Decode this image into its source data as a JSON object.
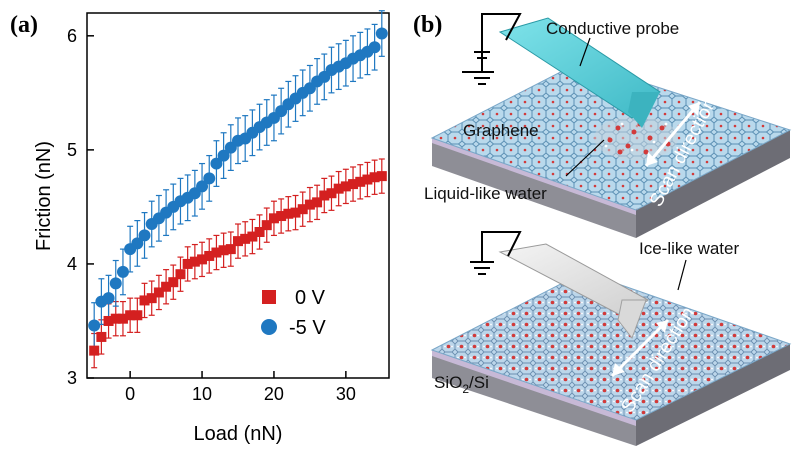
{
  "panels": {
    "a_label": "(a)",
    "b_label": "(b)"
  },
  "chart_data": {
    "type": "scatter",
    "title": "",
    "xlabel": "Load (nN)",
    "ylabel": "Friction (nN)",
    "xlim": [
      -6,
      36
    ],
    "ylim": [
      3,
      6.2
    ],
    "xticks": [
      0,
      10,
      20,
      30
    ],
    "yticks": [
      3,
      4,
      5,
      6
    ],
    "grid": false,
    "legend_position": "bottom-right",
    "colors": {
      "0 V": "#d42020",
      "-5 V": "#1f78c1"
    },
    "series": [
      {
        "name": "0 V",
        "marker": "square",
        "x": [
          -5,
          -4,
          -3,
          -2,
          -1,
          0,
          1,
          2,
          3,
          4,
          5,
          6,
          7,
          8,
          9,
          10,
          11,
          12,
          13,
          14,
          15,
          16,
          17,
          18,
          19,
          20,
          21,
          22,
          23,
          24,
          25,
          26,
          27,
          28,
          29,
          30,
          31,
          32,
          33,
          34,
          35
        ],
        "y": [
          3.24,
          3.36,
          3.5,
          3.52,
          3.52,
          3.55,
          3.55,
          3.68,
          3.7,
          3.75,
          3.8,
          3.84,
          3.91,
          4.0,
          4.02,
          4.04,
          4.07,
          4.1,
          4.12,
          4.13,
          4.2,
          4.22,
          4.24,
          4.28,
          4.34,
          4.4,
          4.42,
          4.44,
          4.45,
          4.48,
          4.52,
          4.54,
          4.6,
          4.62,
          4.66,
          4.68,
          4.7,
          4.72,
          4.74,
          4.76,
          4.77
        ],
        "error": [
          0.15,
          0.15,
          0.15,
          0.15,
          0.15,
          0.15,
          0.15,
          0.15,
          0.15,
          0.15,
          0.15,
          0.15,
          0.15,
          0.15,
          0.15,
          0.15,
          0.15,
          0.15,
          0.15,
          0.15,
          0.15,
          0.15,
          0.15,
          0.15,
          0.15,
          0.15,
          0.15,
          0.15,
          0.15,
          0.15,
          0.15,
          0.15,
          0.15,
          0.15,
          0.15,
          0.15,
          0.15,
          0.15,
          0.15,
          0.15,
          0.15
        ]
      },
      {
        "name": "-5 V",
        "marker": "circle",
        "x": [
          -5,
          -4,
          -3,
          -2,
          -1,
          0,
          1,
          2,
          3,
          4,
          5,
          6,
          7,
          8,
          9,
          10,
          11,
          12,
          13,
          14,
          15,
          16,
          17,
          18,
          19,
          20,
          21,
          22,
          23,
          24,
          25,
          26,
          27,
          28,
          29,
          30,
          31,
          32,
          33,
          34,
          35
        ],
        "y": [
          3.46,
          3.67,
          3.7,
          3.83,
          3.93,
          4.13,
          4.18,
          4.25,
          4.35,
          4.4,
          4.45,
          4.5,
          4.55,
          4.58,
          4.62,
          4.68,
          4.75,
          4.88,
          4.95,
          5.02,
          5.08,
          5.1,
          5.15,
          5.2,
          5.24,
          5.28,
          5.34,
          5.4,
          5.45,
          5.5,
          5.54,
          5.6,
          5.64,
          5.7,
          5.73,
          5.76,
          5.8,
          5.83,
          5.86,
          5.9,
          6.02
        ],
        "error": [
          0.2,
          0.2,
          0.2,
          0.2,
          0.2,
          0.2,
          0.2,
          0.2,
          0.2,
          0.2,
          0.2,
          0.2,
          0.2,
          0.2,
          0.2,
          0.2,
          0.2,
          0.2,
          0.2,
          0.2,
          0.2,
          0.2,
          0.2,
          0.2,
          0.2,
          0.2,
          0.2,
          0.2,
          0.2,
          0.2,
          0.2,
          0.2,
          0.2,
          0.2,
          0.2,
          0.2,
          0.2,
          0.2,
          0.2,
          0.2,
          0.2
        ]
      }
    ]
  },
  "schematic": {
    "top": {
      "probe_label": "Conductive probe",
      "graphene_label": "Graphene",
      "water_label": "Liquid-like water",
      "scan_label": "Scan direction"
    },
    "bottom": {
      "water_label": "Ice-like water",
      "scan_label": "Scan direction",
      "substrate_label_main": "SiO",
      "substrate_label_sub": "2",
      "substrate_label_rest": "/Si"
    },
    "colors": {
      "lattice_bg": "#b9d9ec",
      "lattice_line": "#5a8fb3",
      "substrate": "#8e8e96",
      "substrate_top": "#c7b9d6",
      "probe_top": "#58d3dc",
      "probe_bottom": "#e0e0e0",
      "water_o": "#d23a3a",
      "water_h": "#eef2f7"
    }
  }
}
